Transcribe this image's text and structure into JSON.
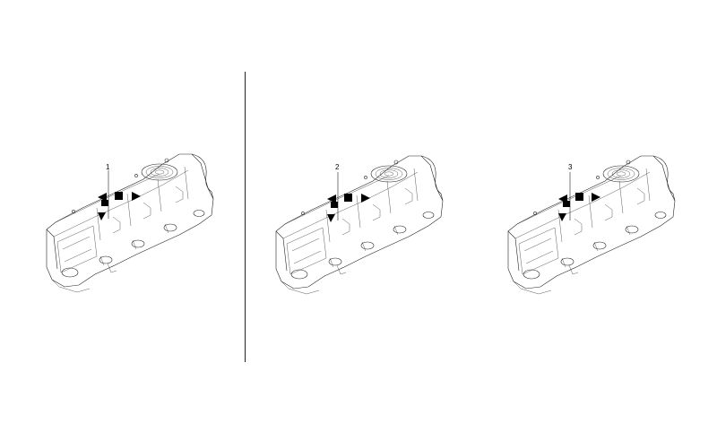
{
  "panels": [
    {
      "callout": "1",
      "mode": "both"
    },
    {
      "callout": "2",
      "mode": "left"
    },
    {
      "callout": "3",
      "mode": "right"
    }
  ],
  "colors": {
    "line": "#222222",
    "fill": "#000000",
    "background": "#ffffff"
  }
}
